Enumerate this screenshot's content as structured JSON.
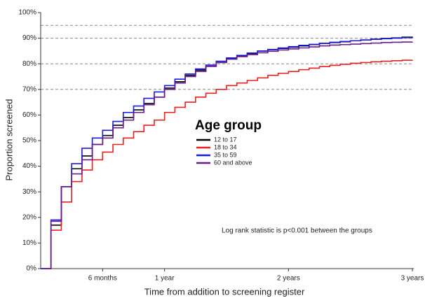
{
  "chart_data": {
    "type": "step",
    "x_label": "Time from addition to screening register",
    "y_label": "Proportion screened",
    "annotation": "Log rank statistic is p<0.001 between the groups",
    "legend_title": "Age group",
    "x": [
      0,
      1,
      2,
      3,
      4,
      5,
      6,
      7,
      8,
      9,
      10,
      11,
      12,
      13,
      14,
      15,
      16,
      17,
      18,
      19,
      20,
      21,
      22,
      23,
      24,
      25,
      26,
      27,
      28,
      29,
      30,
      31,
      32,
      33,
      34,
      35,
      36
    ],
    "xlim": [
      0,
      36
    ],
    "xticks": [
      {
        "value": 6,
        "label": "6 months"
      },
      {
        "value": 12,
        "label": "1 year"
      },
      {
        "value": 24,
        "label": "2 years"
      },
      {
        "value": 36,
        "label": "3 years"
      }
    ],
    "ylim": [
      0,
      100
    ],
    "yticks": [
      {
        "value": 0,
        "label": "0%"
      },
      {
        "value": 10,
        "label": "10%"
      },
      {
        "value": 20,
        "label": "20%"
      },
      {
        "value": 30,
        "label": "30%"
      },
      {
        "value": 40,
        "label": "40%"
      },
      {
        "value": 50,
        "label": "50%"
      },
      {
        "value": 60,
        "label": "60%"
      },
      {
        "value": 70,
        "label": "70%"
      },
      {
        "value": 80,
        "label": "80%"
      },
      {
        "value": 90,
        "label": "90%"
      },
      {
        "value": 100,
        "label": "100%"
      }
    ],
    "reference_lines": [
      70,
      80,
      90,
      95
    ],
    "series": [
      {
        "name": "12 to 17",
        "color": "#000000",
        "values": [
          0,
          17,
          32,
          39,
          44,
          48.5,
          52,
          56,
          59,
          62,
          64.5,
          67,
          70.5,
          73,
          75.5,
          77.5,
          79,
          80.5,
          82,
          83,
          84,
          85,
          85.5,
          86,
          86.5,
          87,
          87.5,
          88,
          88.3,
          88.6,
          89,
          89.3,
          89.6,
          89.9,
          90.1,
          90.4,
          90.6
        ]
      },
      {
        "name": "18 to 34",
        "color": "#e8211f",
        "values": [
          0,
          15,
          26,
          34,
          38.5,
          42.5,
          45.5,
          48.5,
          51,
          53.5,
          56,
          58,
          61,
          63,
          65,
          67,
          68.5,
          70,
          71.5,
          72.5,
          73.5,
          74.5,
          75.5,
          76.3,
          77,
          77.7,
          78.3,
          78.9,
          79.4,
          79.8,
          80.2,
          80.5,
          80.8,
          81,
          81.2,
          81.4,
          81.5
        ]
      },
      {
        "name": "35 to 59",
        "color": "#1a1ae6",
        "values": [
          0,
          19,
          32,
          41,
          47,
          51,
          54,
          57.5,
          61,
          63.5,
          66.5,
          69,
          71.5,
          74,
          76,
          78,
          79.5,
          81,
          82.3,
          83.3,
          84.2,
          85,
          85.6,
          86.2,
          86.7,
          87.2,
          87.6,
          88,
          88.4,
          88.7,
          89,
          89.3,
          89.6,
          89.8,
          90,
          90.2,
          90.3
        ]
      },
      {
        "name": "60 and above",
        "color": "#6a1b8a",
        "values": [
          0,
          18.5,
          32,
          37,
          42.5,
          48.5,
          51,
          55,
          58,
          61,
          64,
          67,
          70,
          72.5,
          75,
          77,
          79,
          80.5,
          81.8,
          82.8,
          83.6,
          84.3,
          84.9,
          85.4,
          85.8,
          86.2,
          86.6,
          87,
          87.3,
          87.5,
          87.7,
          87.9,
          88.1,
          88.3,
          88.4,
          88.5,
          88.6
        ]
      }
    ]
  }
}
